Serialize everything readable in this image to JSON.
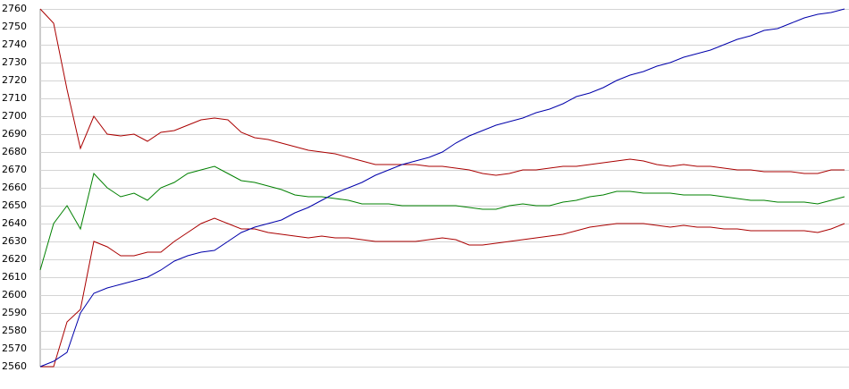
{
  "chart_data": {
    "type": "line",
    "ylim": [
      2560,
      2760
    ],
    "yticks": [
      2560,
      2570,
      2580,
      2590,
      2600,
      2610,
      2620,
      2630,
      2640,
      2650,
      2660,
      2670,
      2680,
      2690,
      2700,
      2710,
      2720,
      2730,
      2740,
      2750,
      2760
    ],
    "grid": true,
    "series": [
      {
        "color": "#aa0000",
        "values": [
          2760,
          2752,
          2715,
          2682,
          2700,
          2690,
          2689,
          2690,
          2686,
          2691,
          2692,
          2695,
          2698,
          2699,
          2698,
          2691,
          2688,
          2687,
          2685,
          2683,
          2681,
          2680,
          2679,
          2677,
          2675,
          2673,
          2673,
          2673,
          2673,
          2672,
          2672,
          2671,
          2670,
          2668,
          2667,
          2668,
          2670,
          2670,
          2671,
          2672,
          2672,
          2673,
          2674,
          2675,
          2676,
          2675,
          2673,
          2672,
          2673,
          2672,
          2672,
          2671,
          2670,
          2670,
          2669,
          2669,
          2669,
          2668,
          2668,
          2670,
          2670
        ]
      },
      {
        "color": "#008000",
        "values": [
          2614,
          2640,
          2650,
          2637,
          2668,
          2660,
          2655,
          2657,
          2653,
          2660,
          2663,
          2668,
          2670,
          2672,
          2668,
          2664,
          2663,
          2661,
          2659,
          2656,
          2655,
          2655,
          2654,
          2653,
          2651,
          2651,
          2651,
          2650,
          2650,
          2650,
          2650,
          2650,
          2649,
          2648,
          2648,
          2650,
          2651,
          2650,
          2650,
          2652,
          2653,
          2655,
          2656,
          2658,
          2658,
          2657,
          2657,
          2657,
          2656,
          2656,
          2656,
          2655,
          2654,
          2653,
          2653,
          2652,
          2652,
          2652,
          2651,
          2653,
          2655
        ]
      },
      {
        "color": "#aa0000",
        "values": [
          2560,
          2560,
          2585,
          2592,
          2630,
          2627,
          2622,
          2622,
          2624,
          2624,
          2630,
          2635,
          2640,
          2643,
          2640,
          2637,
          2637,
          2635,
          2634,
          2633,
          2632,
          2633,
          2632,
          2632,
          2631,
          2630,
          2630,
          2630,
          2630,
          2631,
          2632,
          2631,
          2628,
          2628,
          2629,
          2630,
          2631,
          2632,
          2633,
          2634,
          2636,
          2638,
          2639,
          2640,
          2640,
          2640,
          2639,
          2638,
          2639,
          2638,
          2638,
          2637,
          2637,
          2636,
          2636,
          2636,
          2636,
          2636,
          2635,
          2637,
          2640
        ]
      },
      {
        "color": "#0000aa",
        "values": [
          2560,
          2563,
          2568,
          2590,
          2601,
          2604,
          2606,
          2608,
          2610,
          2614,
          2619,
          2622,
          2624,
          2625,
          2630,
          2635,
          2638,
          2640,
          2642,
          2646,
          2649,
          2653,
          2657,
          2660,
          2663,
          2667,
          2670,
          2673,
          2675,
          2677,
          2680,
          2685,
          2689,
          2692,
          2695,
          2697,
          2699,
          2702,
          2704,
          2707,
          2711,
          2713,
          2716,
          2720,
          2723,
          2725,
          2728,
          2730,
          2733,
          2735,
          2737,
          2740,
          2743,
          2745,
          2748,
          2749,
          2752,
          2755,
          2757,
          2758,
          2760
        ]
      }
    ]
  }
}
